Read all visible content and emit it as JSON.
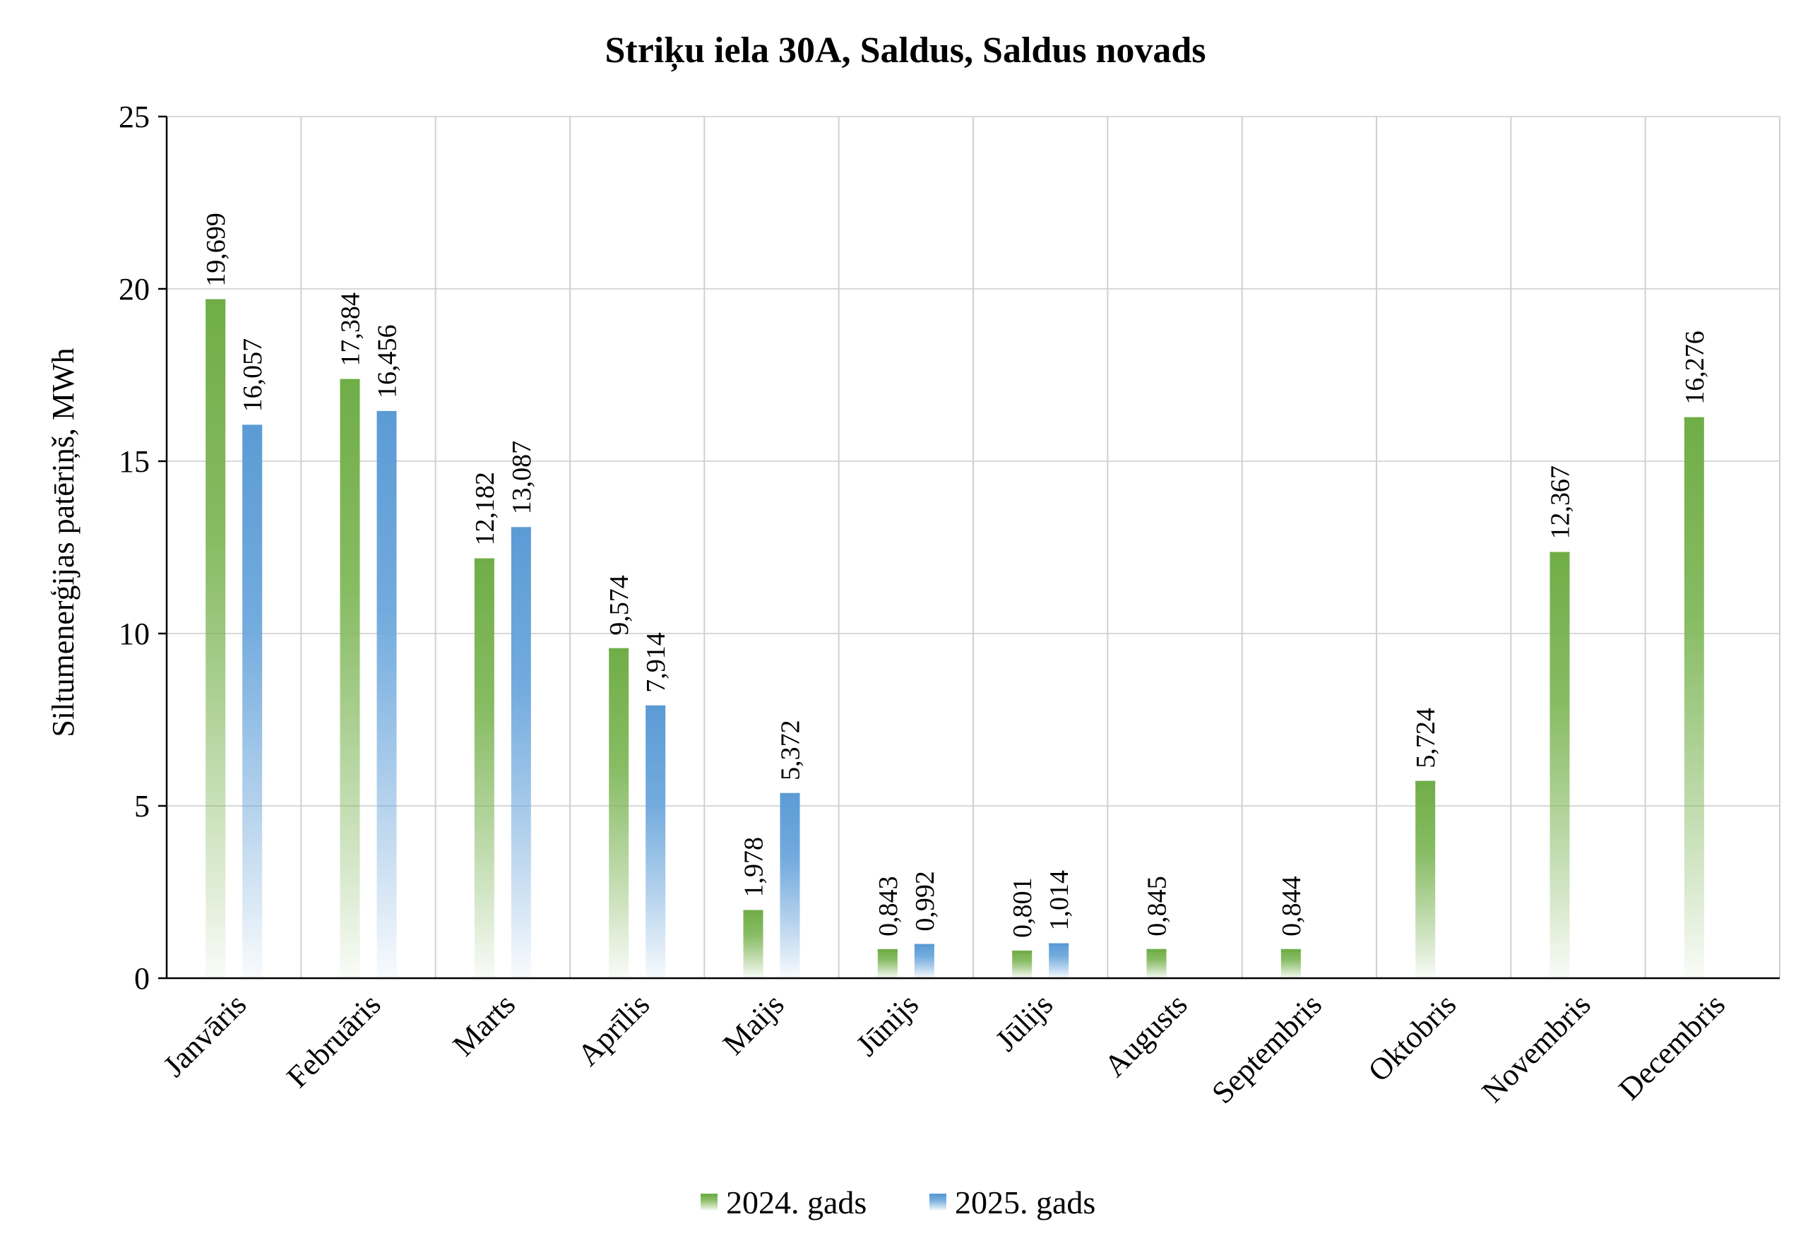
{
  "chart_data": {
    "type": "bar",
    "title": "Striķu iela 30A, Saldus, Saldus novads",
    "xlabel": "",
    "ylabel": "Siltumenerģijas patēriņš, MWh",
    "ylim": [
      0,
      25
    ],
    "yticks": [
      0,
      5,
      10,
      15,
      20,
      25
    ],
    "grid": true,
    "legend_position": "bottom",
    "categories": [
      "Janvāris",
      "Februāris",
      "Marts",
      "Aprīlis",
      "Maijs",
      "Jūnijs",
      "Jūlijs",
      "Augusts",
      "Septembris",
      "Oktobris",
      "Novembris",
      "Decembris"
    ],
    "series": [
      {
        "name": "2024. gads",
        "color": "#70ad47",
        "values": [
          19.699,
          17.384,
          12.182,
          9.574,
          1.978,
          0.843,
          0.801,
          0.845,
          0.844,
          5.724,
          12.367,
          16.276
        ],
        "labels": [
          "19,699",
          "17,384",
          "12,182",
          "9,574",
          "1,978",
          "0,843",
          "0,801",
          "0,845",
          "0,844",
          "5,724",
          "12,367",
          "16,276"
        ]
      },
      {
        "name": "2025. gads",
        "color": "#5b9bd5",
        "values": [
          16.057,
          16.456,
          13.087,
          7.914,
          5.372,
          0.992,
          1.014,
          null,
          null,
          null,
          null,
          null
        ],
        "labels": [
          "16,057",
          "16,456",
          "13,087",
          "7,914",
          "5,372",
          "0,992",
          "1,014",
          "",
          "",
          "",
          "",
          ""
        ]
      }
    ]
  }
}
